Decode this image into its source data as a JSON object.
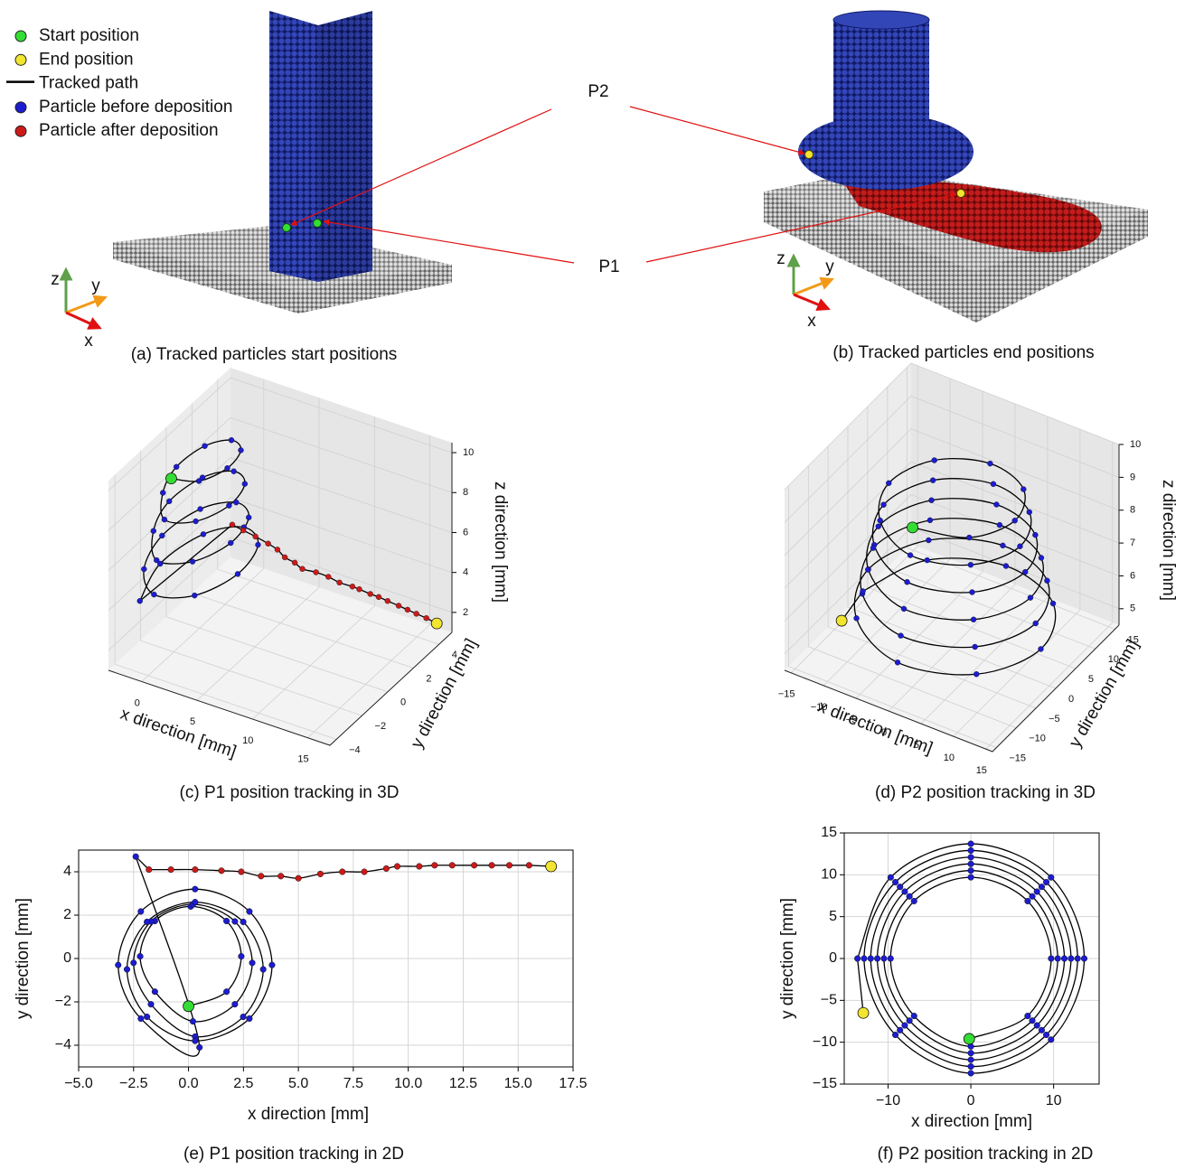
{
  "legend": [
    {
      "label": "Start position",
      "color": "#33dd33",
      "kind": "dot"
    },
    {
      "label": "End position",
      "color": "#f2e530",
      "kind": "dot"
    },
    {
      "label": "Tracked path",
      "color": "#000000",
      "kind": "line"
    },
    {
      "label": "Particle before deposition",
      "color": "#1c1cd0",
      "kind": "dot"
    },
    {
      "label": "Particle after deposition",
      "color": "#cc1a1a",
      "kind": "dot"
    }
  ],
  "panels": [
    {
      "caption": "(a) Tracked particles start positions",
      "axes": [
        "z",
        "y",
        "x"
      ]
    },
    {
      "caption": "(b) Tracked particles end positions",
      "axes": [
        "z",
        "y",
        "x"
      ]
    }
  ],
  "particles": [
    "P1",
    "P2"
  ],
  "chart_data": [
    {
      "type": "line3d",
      "caption": "(c) P1 position tracking in 3D",
      "xlabel": "x direction [mm]",
      "ylabel": "y direction [mm]",
      "zlabel": "z direction [mm]",
      "xlim": [
        -3,
        17
      ],
      "ylim": [
        -4.5,
        5
      ],
      "zlim": [
        1,
        10.5
      ],
      "xticks": [
        0,
        5,
        10,
        15
      ],
      "yticks": [
        {
          "value": -4,
          "label": "−4"
        },
        {
          "value": -2,
          "label": "−2"
        },
        0,
        2,
        4
      ],
      "zticks": [
        2,
        4,
        6,
        8,
        10
      ],
      "line_color": "#000000",
      "grid": true,
      "series": [
        {
          "color": "#1c1cd0",
          "x": [
            0.0,
            1.73,
            2.4,
            1.73,
            0.1,
            -1.53,
            -2.2,
            -1.53,
            0.2,
            2.11,
            2.9,
            2.11,
            0.2,
            -1.71,
            -2.5,
            -1.71,
            0.3,
            2.49,
            3.4,
            2.49,
            0.3,
            -1.89,
            -2.8,
            -1.89,
            0.3,
            2.77,
            3.8,
            2.77,
            0.3,
            -2.17,
            -3.2,
            -2.17
          ],
          "y": [
            -2.2,
            -1.53,
            0.1,
            1.73,
            2.4,
            1.73,
            0.1,
            -1.53,
            -2.9,
            -2.11,
            -0.2,
            1.71,
            2.5,
            1.71,
            -0.2,
            -2.11,
            -3.6,
            -2.69,
            -0.5,
            1.69,
            2.6,
            1.69,
            -0.5,
            -2.69,
            -3.8,
            -2.77,
            -0.3,
            2.17,
            3.2,
            2.17,
            -0.3,
            -2.77
          ],
          "z": [
            9.8,
            9.6,
            9.4,
            9.2,
            9.0,
            8.8,
            8.6,
            8.4,
            8.2,
            8.0,
            7.8,
            7.6,
            7.4,
            7.2,
            7.0,
            6.8,
            6.6,
            6.4,
            6.2,
            6.0,
            5.8,
            5.6,
            5.4,
            5.2,
            5.0,
            4.8,
            4.6,
            4.4,
            4.2,
            4.0,
            3.8,
            3.6
          ]
        },
        {
          "color": "#cc1a1a",
          "x": [
            -1.8,
            -0.8,
            0.3,
            1.5,
            2.4,
            3.3,
            4.2,
            5.0,
            6.0,
            7.0,
            8.0,
            9.0,
            9.5,
            10.5,
            11.2,
            12.0,
            13.0,
            13.8,
            14.6,
            15.5
          ],
          "y": [
            4.1,
            4.1,
            4.1,
            4.05,
            4.0,
            3.8,
            3.8,
            3.7,
            3.9,
            4.0,
            4.0,
            4.15,
            4.25,
            4.25,
            4.3,
            4.3,
            4.3,
            4.3,
            4.3,
            4.3
          ],
          "z": [
            3.4,
            3.3,
            3.2,
            3.1,
            3.0,
            2.9,
            2.8,
            2.7,
            2.6,
            2.5,
            2.4,
            2.3,
            2.2,
            2.15,
            2.1,
            2.05,
            2.0,
            1.95,
            1.9,
            1.85
          ]
        }
      ],
      "start": [
        0.0,
        -2.2,
        9.8
      ],
      "end": [
        16.5,
        4.25,
        1.8
      ]
    },
    {
      "type": "line3d",
      "caption": "(d) P2 position tracking in 3D",
      "xlabel": "x direction [mm]",
      "ylabel": "y direction [mm]",
      "zlabel": "z direction [mm]",
      "xlim": [
        -16,
        16
      ],
      "ylim": [
        -16,
        16
      ],
      "zlim": [
        4.5,
        10
      ],
      "xticks": [
        {
          "value": -15,
          "label": "−15"
        },
        {
          "value": -10,
          "label": "−10"
        },
        {
          "value": -5,
          "label": "−5"
        },
        0,
        5,
        10,
        15
      ],
      "yticks": [
        {
          "value": -15,
          "label": "−15"
        },
        {
          "value": -10,
          "label": "−10"
        },
        {
          "value": -5,
          "label": "−5"
        },
        0,
        5,
        10,
        15
      ],
      "zticks": [
        5,
        6,
        7,
        8,
        9,
        10
      ],
      "line_color": "#000000",
      "grid": true,
      "series": [
        {
          "color": "#1c1cd0",
          "x": [
            -0.2,
            6.86,
            9.7,
            6.86,
            0,
            -6.86,
            -9.7,
            -6.86,
            0,
            7.42,
            10.5,
            7.42,
            0,
            -7.42,
            -10.5,
            -7.42,
            0,
            7.99,
            11.3,
            7.99,
            0,
            -7.99,
            -11.3,
            -7.99,
            0,
            8.56,
            12.1,
            8.56,
            0,
            -8.56,
            -12.1,
            -8.56,
            0,
            9.12,
            12.9,
            9.12,
            0,
            -9.12,
            -12.9,
            -9.12,
            0,
            9.69,
            13.7,
            9.69,
            0,
            -9.69,
            -13.7
          ],
          "y": [
            -9.6,
            -6.86,
            0,
            6.86,
            9.7,
            6.86,
            0,
            -6.86,
            -10.5,
            -7.42,
            0,
            7.42,
            10.5,
            7.42,
            0,
            -7.42,
            -11.3,
            -7.99,
            0,
            7.99,
            11.3,
            7.99,
            0,
            -7.99,
            -12.1,
            -8.56,
            0,
            8.56,
            12.1,
            8.56,
            0,
            -8.56,
            -12.9,
            -9.12,
            0,
            9.12,
            12.9,
            9.12,
            0,
            -9.12,
            -13.7,
            -9.69,
            0,
            9.69,
            13.7,
            9.69,
            0
          ],
          "z": [
            9.3,
            9.21,
            9.12,
            9.03,
            8.94,
            8.85,
            8.76,
            8.67,
            8.58,
            8.49,
            8.4,
            8.31,
            8.22,
            8.13,
            8.04,
            7.95,
            7.86,
            7.77,
            7.68,
            7.59,
            7.5,
            7.41,
            7.32,
            7.23,
            7.14,
            7.05,
            6.96,
            6.87,
            6.78,
            6.69,
            6.6,
            6.51,
            6.42,
            6.33,
            6.24,
            6.15,
            6.06,
            5.97,
            5.88,
            5.79,
            5.7,
            5.61,
            5.52,
            5.43,
            5.34,
            5.25,
            5.16
          ]
        }
      ],
      "start": [
        -0.2,
        -9.6,
        9.3
      ],
      "end": [
        -13,
        -6.5,
        5.1
      ]
    },
    {
      "type": "line",
      "caption": "(e) P1 position tracking in 2D",
      "xlabel": "x direction [mm]",
      "ylabel": "y direction [mm]",
      "xlim": [
        -5,
        17.5
      ],
      "ylim": [
        -5,
        5
      ],
      "xticks": [
        {
          "value": -5,
          "label": "−5.0"
        },
        {
          "value": -2.5,
          "label": "−2.5"
        },
        {
          "value": 0,
          "label": "0.0"
        },
        2.5,
        {
          "value": 5,
          "label": "5.0"
        },
        7.5,
        {
          "value": 10,
          "label": "10.0"
        },
        12.5,
        {
          "value": 15,
          "label": "15.0"
        },
        17.5
      ],
      "yticks": [
        {
          "value": -4,
          "label": "−4"
        },
        {
          "value": -2,
          "label": "−2"
        },
        0,
        2,
        4
      ],
      "line_color": "#000000",
      "grid": true,
      "series": [
        {
          "color": "#1c1cd0",
          "x": [
            0.0,
            1.73,
            2.4,
            1.73,
            0.1,
            -1.53,
            -2.2,
            -1.53,
            0.2,
            2.11,
            2.9,
            2.11,
            0.2,
            -1.71,
            -2.5,
            -1.71,
            0.3,
            2.49,
            3.4,
            2.49,
            0.3,
            -1.89,
            -2.8,
            -1.89,
            0.3,
            2.77,
            3.8,
            2.77,
            0.3,
            -2.17,
            -3.2,
            -2.17,
            0.5,
            -2.4
          ],
          "y": [
            -2.2,
            -1.53,
            0.1,
            1.73,
            2.4,
            1.73,
            0.1,
            -1.53,
            -2.9,
            -2.11,
            -0.2,
            1.71,
            2.5,
            1.71,
            -0.2,
            -2.11,
            -3.6,
            -2.69,
            -0.5,
            1.69,
            2.6,
            1.69,
            -0.5,
            -2.69,
            -3.8,
            -2.77,
            -0.3,
            2.17,
            3.2,
            2.17,
            -0.3,
            -2.77,
            -4.1,
            4.7
          ]
        },
        {
          "color": "#cc1a1a",
          "x": [
            -1.8,
            -0.8,
            0.3,
            1.5,
            2.4,
            3.3,
            4.2,
            5.0,
            6.0,
            7.0,
            8.0,
            9.0,
            9.5,
            10.5,
            11.2,
            12.0,
            13.0,
            13.8,
            14.6,
            15.5
          ],
          "y": [
            4.1,
            4.1,
            4.1,
            4.05,
            4.0,
            3.8,
            3.8,
            3.7,
            3.9,
            4.0,
            4.0,
            4.15,
            4.25,
            4.25,
            4.3,
            4.3,
            4.3,
            4.3,
            4.3,
            4.3
          ]
        }
      ],
      "start": [
        0.0,
        -2.2
      ],
      "end": [
        16.5,
        4.25
      ]
    },
    {
      "type": "line",
      "caption": "(f) P2 position tracking in 2D",
      "xlabel": "x direction [mm]",
      "ylabel": "y direction [mm]",
      "xlim": [
        -15.3,
        15.5
      ],
      "ylim": [
        -15,
        15
      ],
      "xticks": [
        {
          "value": -10,
          "label": "−10"
        },
        0,
        10
      ],
      "yticks": [
        {
          "value": -15,
          "label": "−15"
        },
        {
          "value": -10,
          "label": "−10"
        },
        {
          "value": -5,
          "label": "−5"
        },
        0,
        5,
        10,
        15
      ],
      "line_color": "#000000",
      "grid": true,
      "series": [
        {
          "color": "#1c1cd0",
          "x": [
            -0.2,
            6.86,
            9.7,
            6.86,
            0,
            -6.86,
            -9.7,
            -6.86,
            0,
            7.42,
            10.5,
            7.42,
            0,
            -7.42,
            -10.5,
            -7.42,
            0,
            7.99,
            11.3,
            7.99,
            0,
            -7.99,
            -11.3,
            -7.99,
            0,
            8.56,
            12.1,
            8.56,
            0,
            -8.56,
            -12.1,
            -8.56,
            0,
            9.12,
            12.9,
            9.12,
            0,
            -9.12,
            -12.9,
            -9.12,
            0,
            9.69,
            13.7,
            9.69,
            0,
            -9.69,
            -13.7
          ],
          "y": [
            -9.6,
            -6.86,
            0,
            6.86,
            9.7,
            6.86,
            0,
            -6.86,
            -10.5,
            -7.42,
            0,
            7.42,
            10.5,
            7.42,
            0,
            -7.42,
            -11.3,
            -7.99,
            0,
            7.99,
            11.3,
            7.99,
            0,
            -7.99,
            -12.1,
            -8.56,
            0,
            8.56,
            12.1,
            8.56,
            0,
            -8.56,
            -12.9,
            -9.12,
            0,
            9.12,
            12.9,
            9.12,
            0,
            -9.12,
            -13.7,
            -9.69,
            0,
            9.69,
            13.7,
            9.69,
            0
          ]
        }
      ],
      "start": [
        -0.2,
        -9.6
      ],
      "end": [
        -13,
        -6.5
      ]
    }
  ]
}
